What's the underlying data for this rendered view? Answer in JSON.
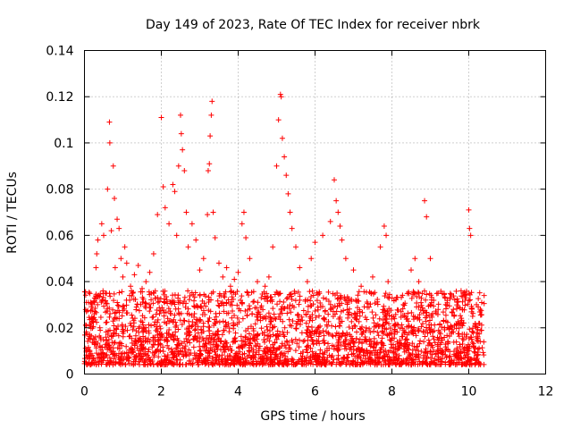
{
  "chart_data": {
    "type": "scatter",
    "title": "Day 149 of 2023, Rate Of TEC Index for receiver nbrk",
    "xlabel": "GPS time / hours",
    "ylabel": "ROTI / TECUs",
    "xlim": [
      0,
      12
    ],
    "ylim": [
      0,
      0.14
    ],
    "x_ticks": [
      0,
      2,
      4,
      6,
      8,
      10,
      12
    ],
    "y_ticks": [
      0,
      0.02,
      0.04,
      0.06,
      0.08,
      0.1,
      0.12,
      0.14
    ],
    "grid": true,
    "marker": "+",
    "color": "#ff0000",
    "data_x_range": [
      0.0,
      10.4
    ],
    "series": [
      {
        "name": "ROTI",
        "points": [
          [
            0.05,
            0.01
          ],
          [
            0.05,
            0.021
          ],
          [
            0.05,
            0.031
          ],
          [
            0.1,
            0.008
          ],
          [
            0.15,
            0.015
          ],
          [
            0.2,
            0.03
          ],
          [
            0.3,
            0.046
          ],
          [
            0.32,
            0.052
          ],
          [
            0.35,
            0.058
          ],
          [
            0.4,
            0.02
          ],
          [
            0.45,
            0.065
          ],
          [
            0.5,
            0.06
          ],
          [
            0.55,
            0.035
          ],
          [
            0.6,
            0.08
          ],
          [
            0.65,
            0.109
          ],
          [
            0.66,
            0.1
          ],
          [
            0.7,
            0.062
          ],
          [
            0.75,
            0.09
          ],
          [
            0.78,
            0.076
          ],
          [
            0.8,
            0.046
          ],
          [
            0.85,
            0.067
          ],
          [
            0.9,
            0.063
          ],
          [
            0.95,
            0.05
          ],
          [
            1.0,
            0.042
          ],
          [
            1.05,
            0.055
          ],
          [
            1.1,
            0.048
          ],
          [
            1.2,
            0.038
          ],
          [
            1.3,
            0.043
          ],
          [
            1.4,
            0.047
          ],
          [
            1.5,
            0.037
          ],
          [
            1.6,
            0.04
          ],
          [
            1.7,
            0.044
          ],
          [
            1.8,
            0.052
          ],
          [
            1.9,
            0.069
          ],
          [
            2.0,
            0.111
          ],
          [
            2.05,
            0.081
          ],
          [
            2.1,
            0.072
          ],
          [
            2.2,
            0.065
          ],
          [
            2.3,
            0.082
          ],
          [
            2.35,
            0.079
          ],
          [
            2.4,
            0.06
          ],
          [
            2.45,
            0.09
          ],
          [
            2.5,
            0.112
          ],
          [
            2.52,
            0.104
          ],
          [
            2.55,
            0.097
          ],
          [
            2.6,
            0.088
          ],
          [
            2.65,
            0.07
          ],
          [
            2.7,
            0.055
          ],
          [
            2.8,
            0.065
          ],
          [
            2.9,
            0.058
          ],
          [
            3.0,
            0.045
          ],
          [
            3.1,
            0.05
          ],
          [
            3.2,
            0.069
          ],
          [
            3.22,
            0.088
          ],
          [
            3.25,
            0.091
          ],
          [
            3.27,
            0.103
          ],
          [
            3.3,
            0.112
          ],
          [
            3.32,
            0.118
          ],
          [
            3.35,
            0.07
          ],
          [
            3.4,
            0.059
          ],
          [
            3.5,
            0.048
          ],
          [
            3.6,
            0.042
          ],
          [
            3.7,
            0.046
          ],
          [
            3.8,
            0.038
          ],
          [
            3.9,
            0.041
          ],
          [
            4.0,
            0.044
          ],
          [
            4.1,
            0.065
          ],
          [
            4.15,
            0.07
          ],
          [
            4.2,
            0.059
          ],
          [
            4.3,
            0.05
          ],
          [
            4.5,
            0.04
          ],
          [
            4.6,
            0.033
          ],
          [
            4.7,
            0.038
          ],
          [
            4.8,
            0.042
          ],
          [
            4.9,
            0.055
          ],
          [
            5.0,
            0.09
          ],
          [
            5.05,
            0.11
          ],
          [
            5.1,
            0.121
          ],
          [
            5.12,
            0.12
          ],
          [
            5.15,
            0.102
          ],
          [
            5.2,
            0.094
          ],
          [
            5.25,
            0.086
          ],
          [
            5.3,
            0.078
          ],
          [
            5.35,
            0.07
          ],
          [
            5.4,
            0.063
          ],
          [
            5.5,
            0.055
          ],
          [
            5.6,
            0.046
          ],
          [
            5.8,
            0.04
          ],
          [
            5.9,
            0.05
          ],
          [
            6.0,
            0.057
          ],
          [
            6.2,
            0.06
          ],
          [
            6.4,
            0.066
          ],
          [
            6.5,
            0.084
          ],
          [
            6.55,
            0.075
          ],
          [
            6.6,
            0.07
          ],
          [
            6.65,
            0.064
          ],
          [
            6.7,
            0.058
          ],
          [
            6.8,
            0.05
          ],
          [
            7.0,
            0.045
          ],
          [
            7.2,
            0.038
          ],
          [
            7.5,
            0.042
          ],
          [
            7.7,
            0.055
          ],
          [
            7.8,
            0.064
          ],
          [
            7.85,
            0.06
          ],
          [
            7.9,
            0.04
          ],
          [
            8.0,
            0.025
          ],
          [
            8.3,
            0.03
          ],
          [
            8.5,
            0.045
          ],
          [
            8.6,
            0.05
          ],
          [
            8.7,
            0.04
          ],
          [
            8.85,
            0.075
          ],
          [
            8.9,
            0.068
          ],
          [
            9.0,
            0.05
          ],
          [
            9.2,
            0.035
          ],
          [
            9.4,
            0.03
          ],
          [
            9.6,
            0.028
          ],
          [
            9.8,
            0.036
          ],
          [
            9.9,
            0.034
          ],
          [
            10.0,
            0.071
          ],
          [
            10.02,
            0.063
          ],
          [
            10.05,
            0.06
          ],
          [
            10.1,
            0.025
          ],
          [
            10.2,
            0.03
          ],
          [
            10.3,
            0.028
          ],
          [
            10.4,
            0.034
          ]
        ]
      }
    ],
    "background_band": {
      "description": "dense cloud of points between roughly 0.005 and 0.035 across 0 to 10.4 hours",
      "x_range": [
        0.0,
        10.4
      ],
      "y_range": [
        0.004,
        0.036
      ]
    }
  }
}
